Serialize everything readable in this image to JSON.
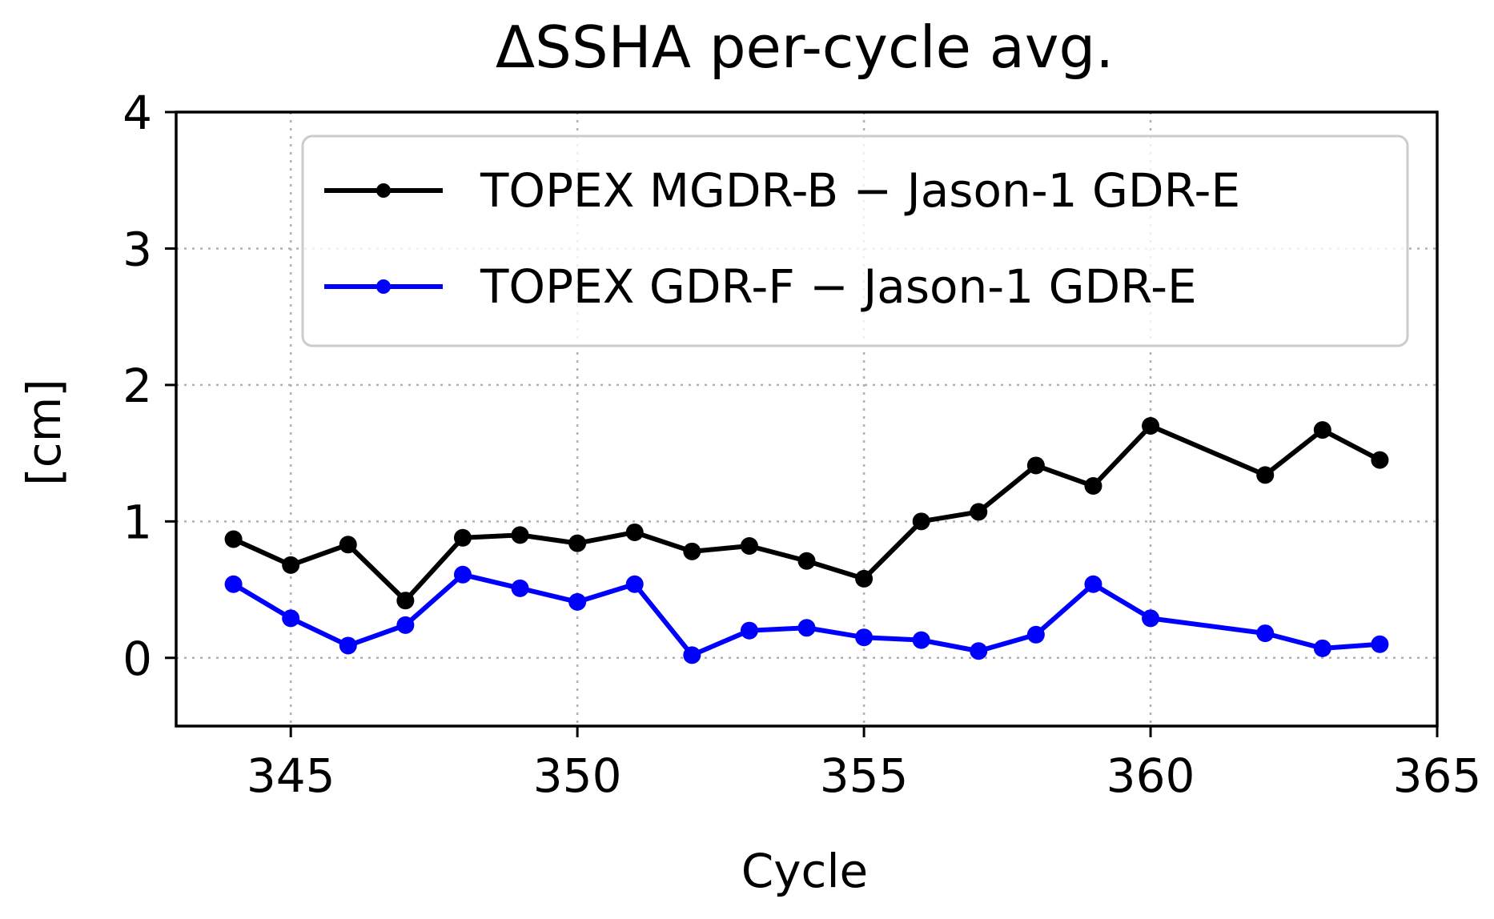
{
  "chart_data": {
    "type": "line",
    "title": "ΔSSHA per-cycle avg.",
    "xlabel": "Cycle",
    "ylabel": "[cm]",
    "xlim": [
      343,
      365
    ],
    "ylim": [
      -0.5,
      4
    ],
    "xticks": [
      345,
      350,
      355,
      360,
      365
    ],
    "yticks": [
      0,
      1,
      2,
      3,
      4
    ],
    "xtick_labels": [
      "345",
      "350",
      "355",
      "360",
      "365"
    ],
    "ytick_labels": [
      "0",
      "1",
      "2",
      "3",
      "4"
    ],
    "grid": true,
    "legend_position": "top-right",
    "series": [
      {
        "name": "TOPEX MGDR-B − Jason-1 GDR-E",
        "color": "#000000",
        "x": [
          344,
          345,
          346,
          347,
          348,
          349,
          350,
          351,
          352,
          353,
          354,
          355,
          356,
          357,
          358,
          359,
          360,
          362,
          363,
          364
        ],
        "values": [
          0.87,
          0.68,
          0.83,
          0.42,
          0.88,
          0.9,
          0.84,
          0.92,
          0.78,
          0.82,
          0.71,
          0.58,
          1.0,
          1.07,
          1.41,
          1.26,
          1.7,
          1.34,
          1.67,
          1.45
        ]
      },
      {
        "name": "TOPEX GDR-F − Jason-1 GDR-E",
        "color": "#0000ff",
        "x": [
          344,
          345,
          346,
          347,
          348,
          349,
          350,
          351,
          352,
          353,
          354,
          355,
          356,
          357,
          358,
          359,
          360,
          362,
          363,
          364
        ],
        "values": [
          0.54,
          0.29,
          0.09,
          0.24,
          0.61,
          0.51,
          0.41,
          0.54,
          0.02,
          0.2,
          0.22,
          0.15,
          0.13,
          0.05,
          0.17,
          0.54,
          0.29,
          0.18,
          0.07,
          0.1
        ]
      }
    ]
  }
}
